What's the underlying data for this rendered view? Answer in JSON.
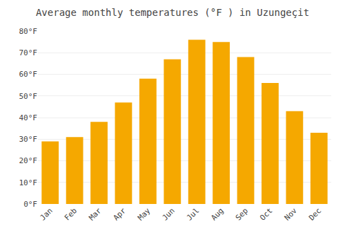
{
  "chart_data": {
    "type": "bar",
    "title": "Average monthly temperatures (°F ) in Uzungeçit",
    "categories": [
      "Jan",
      "Feb",
      "Mar",
      "Apr",
      "May",
      "Jun",
      "Jul",
      "Aug",
      "Sep",
      "Oct",
      "Nov",
      "Dec"
    ],
    "values": [
      29,
      31,
      38,
      47,
      58,
      67,
      76,
      75,
      68,
      56,
      43,
      33
    ],
    "color": "#F5A800",
    "ylim": [
      0,
      80
    ],
    "yticks": [
      {
        "value": 0,
        "label": "0°F"
      },
      {
        "value": 10,
        "label": "10°F"
      },
      {
        "value": 20,
        "label": "20°F"
      },
      {
        "value": 30,
        "label": "30°F"
      },
      {
        "value": 40,
        "label": "40°F"
      },
      {
        "value": 50,
        "label": "50°F"
      },
      {
        "value": 60,
        "label": "60°F"
      },
      {
        "value": 70,
        "label": "70°F"
      },
      {
        "value": 80,
        "label": "80°F"
      }
    ],
    "grid": true
  }
}
